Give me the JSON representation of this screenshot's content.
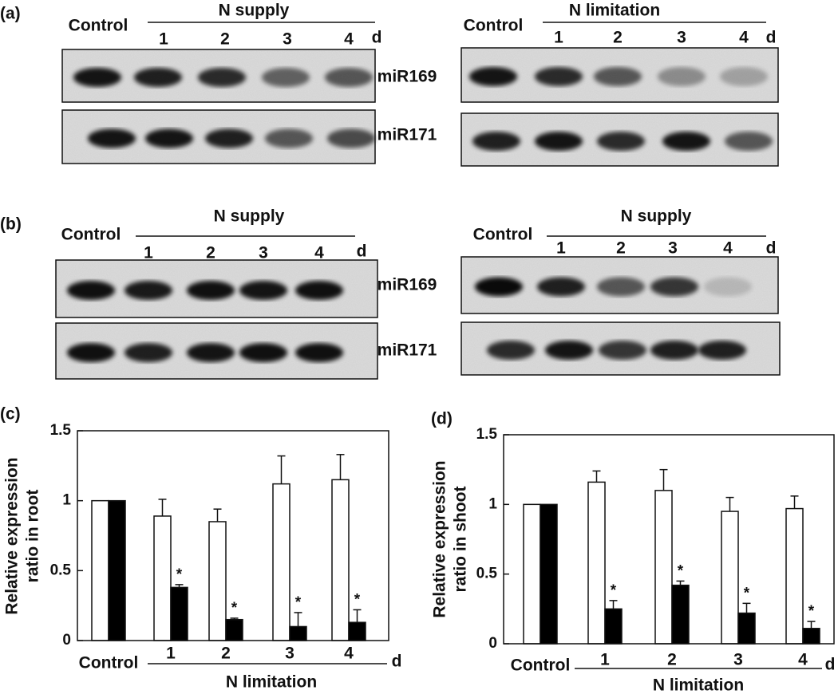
{
  "figure": {
    "panels": [
      {
        "label": "(a)",
        "blots": [
          {
            "control": "Control",
            "treatment": "N supply",
            "lanes": [
              "1",
              "2",
              "3",
              "4"
            ],
            "unit": "d",
            "rows": [
              "miR169",
              "miR171"
            ]
          },
          {
            "control": "Control",
            "treatment": "N limitation",
            "lanes": [
              "1",
              "2",
              "3",
              "4"
            ],
            "unit": "d",
            "rows": []
          }
        ]
      },
      {
        "label": "(b)",
        "blots": [
          {
            "control": "Control",
            "treatment": "N supply",
            "lanes": [
              "1",
              "2",
              "3",
              "4"
            ],
            "unit": "d",
            "rows": [
              "miR169",
              "miR171"
            ]
          },
          {
            "control": "Control",
            "treatment": "N supply",
            "lanes": [
              "1",
              "2",
              "3",
              "4"
            ],
            "unit": "d",
            "rows": []
          }
        ]
      }
    ]
  },
  "chart_data": [
    {
      "type": "bar",
      "label": "(c)",
      "categories": [
        "Control",
        "1",
        "2",
        "3",
        "4"
      ],
      "xlabel": "N limitation",
      "xunit": "d",
      "ylabel": [
        "Relative expression",
        "ratio in root"
      ],
      "ylim": [
        0,
        1.5
      ],
      "yticks": [
        0,
        0.5,
        1,
        1.5
      ],
      "series": [
        {
          "color": "#ffffff",
          "values": [
            1,
            0.89,
            0.85,
            1.12,
            1.15
          ],
          "errors": [
            0,
            0.12,
            0.09,
            0.2,
            0.18
          ]
        },
        {
          "color": "#000000",
          "values": [
            1,
            0.38,
            0.15,
            0.1,
            0.13
          ],
          "errors": [
            0,
            0.02,
            0.01,
            0.1,
            0.09
          ],
          "markers": [
            null,
            "*",
            "*",
            "*",
            "*"
          ]
        }
      ]
    },
    {
      "type": "bar",
      "label": "(d)",
      "categories": [
        "Control",
        "1",
        "2",
        "3",
        "4"
      ],
      "xlabel": "N limitation",
      "xunit": "d",
      "ylabel": [
        "Relative expression",
        "ratio in shoot"
      ],
      "ylim": [
        0,
        1.5
      ],
      "yticks": [
        0,
        0.5,
        1,
        1.5
      ],
      "series": [
        {
          "color": "#ffffff",
          "values": [
            1,
            1.16,
            1.1,
            0.95,
            0.97
          ],
          "errors": [
            0,
            0.08,
            0.15,
            0.1,
            0.09
          ]
        },
        {
          "color": "#000000",
          "values": [
            1,
            0.25,
            0.42,
            0.22,
            0.11
          ],
          "errors": [
            0,
            0.06,
            0.03,
            0.07,
            0.05
          ],
          "markers": [
            null,
            "*",
            "*",
            "*",
            "*"
          ]
        }
      ]
    }
  ]
}
